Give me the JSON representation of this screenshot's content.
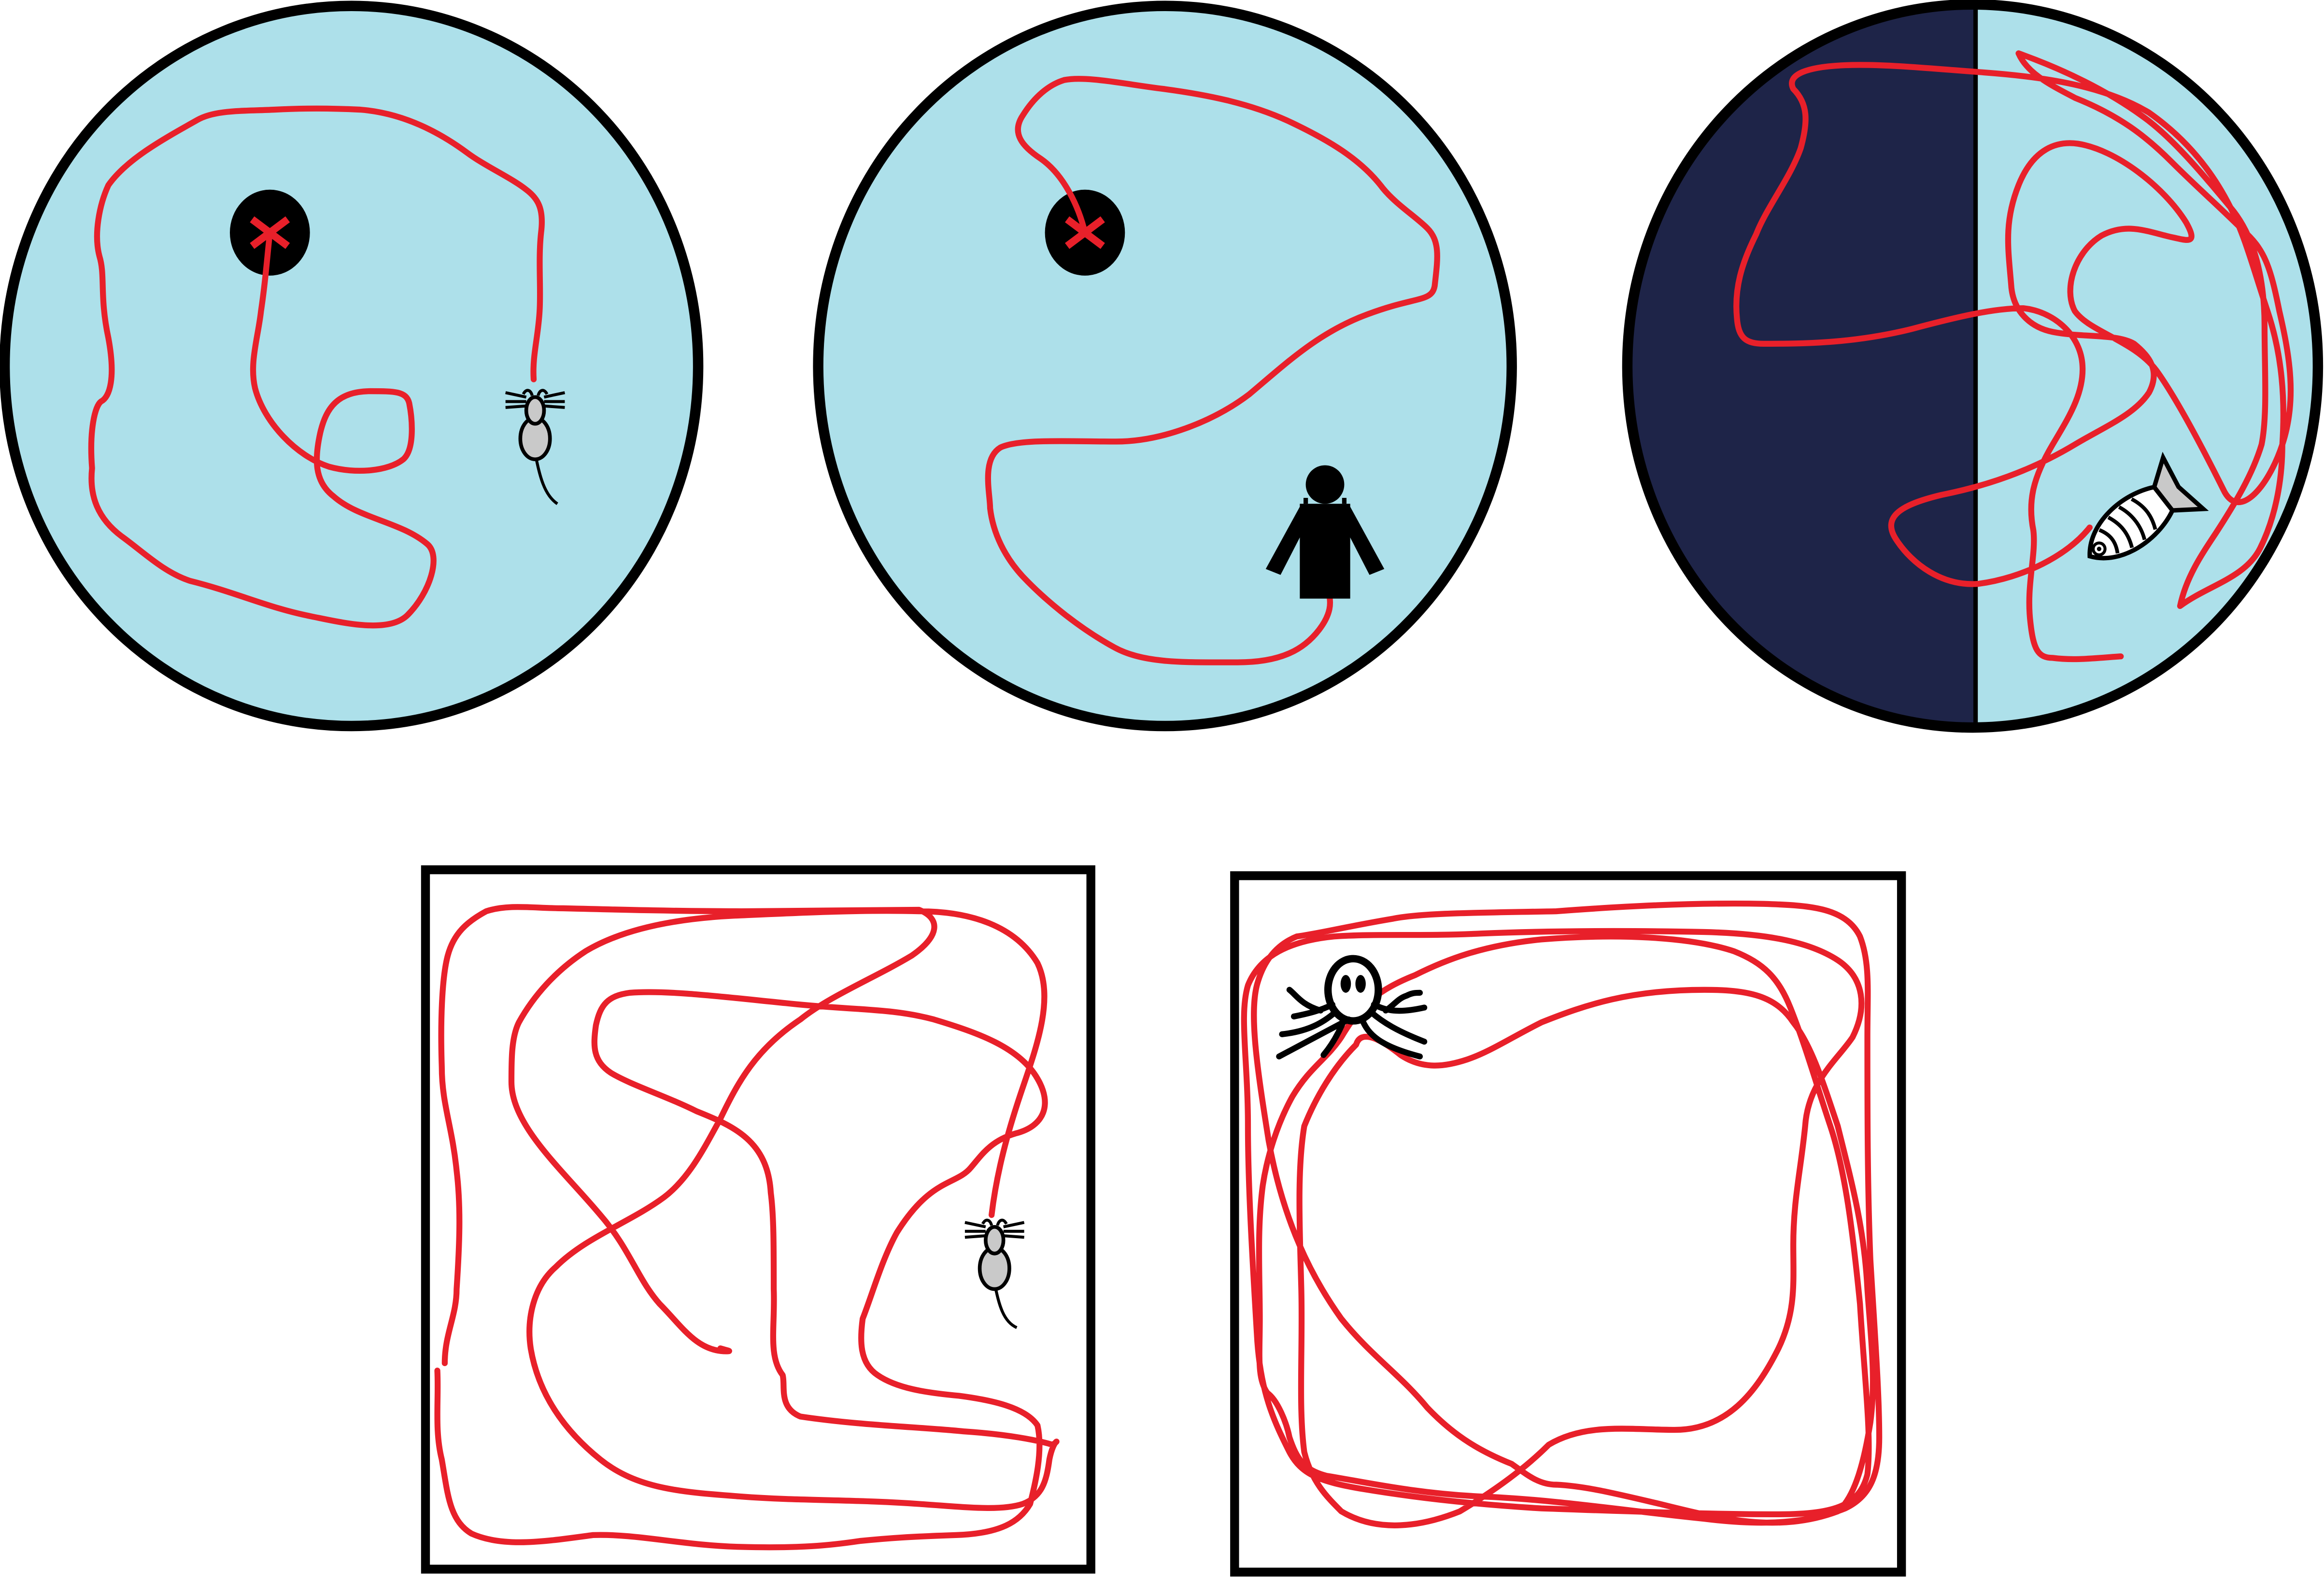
{
  "colors": {
    "background": "#ffffff",
    "pool_water": "#ade0ea",
    "dark_zone": "#1e2448",
    "path": "#e8202a",
    "outline": "#000000",
    "animal_fill": "#c9c9c9",
    "target_mark": "#e8202a"
  },
  "panels": [
    {
      "kind": "circular-pool",
      "subject_icon": "mouse-icon",
      "target": "hidden-platform-icon",
      "has_start_marker": true
    },
    {
      "kind": "circular-pool",
      "subject_icon": "human-icon",
      "target": "hidden-platform-icon",
      "has_start_marker": true
    },
    {
      "kind": "circular-pool-light-dark",
      "subject_icon": "fish-icon",
      "zones": [
        "dark",
        "light"
      ]
    },
    {
      "kind": "square-open-field",
      "subject_icon": "mouse-icon"
    },
    {
      "kind": "square-open-field",
      "subject_icon": "octopus-icon"
    }
  ]
}
